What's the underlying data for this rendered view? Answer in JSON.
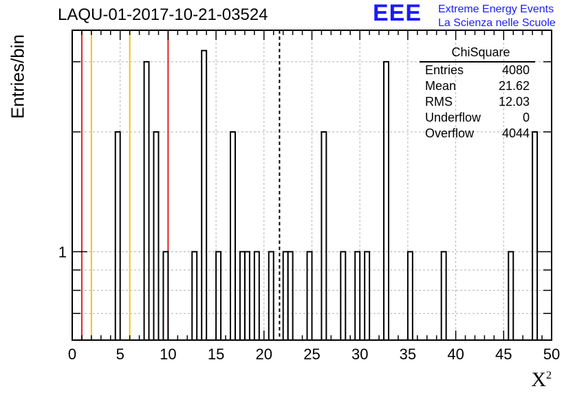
{
  "title": "LAQU-01-2017-10-21-03524",
  "logo": {
    "acronym": "EEE",
    "line1": "Extreme Energy Events",
    "line2": "La Scienza nelle Scuole",
    "color": "#1a1aff"
  },
  "stats": {
    "name": "ChiSquare",
    "rows": [
      {
        "label": "Entries",
        "value": "4080"
      },
      {
        "label": "Mean",
        "value": "21.62"
      },
      {
        "label": "RMS",
        "value": "12.03"
      },
      {
        "label": "Underflow",
        "value": "0"
      },
      {
        "label": "Overflow",
        "value": "4044"
      }
    ]
  },
  "chart_data": {
    "type": "bar",
    "title": "LAQU-01-2017-10-21-03524",
    "xlabel": "X",
    "xlabel_superscript": "2",
    "ylabel": "Entries/bin",
    "xlim": [
      0,
      50
    ],
    "ylim": [
      0.6,
      3.6
    ],
    "yscale": "log",
    "grid": true,
    "bin_width": 0.5,
    "x_ticks": [
      "0",
      "5",
      "10",
      "15",
      "20",
      "25",
      "30",
      "35",
      "40",
      "45",
      "50"
    ],
    "y_ticks": [
      "1"
    ],
    "bins": [
      {
        "x": 4.5,
        "value": 2
      },
      {
        "x": 7.5,
        "value": 3
      },
      {
        "x": 8.5,
        "value": 2
      },
      {
        "x": 9.5,
        "value": 1
      },
      {
        "x": 12.5,
        "value": 1
      },
      {
        "x": 13.5,
        "value": 3.2
      },
      {
        "x": 15.0,
        "value": 1
      },
      {
        "x": 16.5,
        "value": 2
      },
      {
        "x": 17.5,
        "value": 1
      },
      {
        "x": 18.0,
        "value": 1
      },
      {
        "x": 19.0,
        "value": 1
      },
      {
        "x": 20.5,
        "value": 1
      },
      {
        "x": 22.0,
        "value": 1
      },
      {
        "x": 22.5,
        "value": 1
      },
      {
        "x": 24.5,
        "value": 1
      },
      {
        "x": 26.0,
        "value": 2
      },
      {
        "x": 28.0,
        "value": 1
      },
      {
        "x": 29.5,
        "value": 1
      },
      {
        "x": 30.5,
        "value": 1
      },
      {
        "x": 32.5,
        "value": 3
      },
      {
        "x": 35.0,
        "value": 1
      },
      {
        "x": 38.5,
        "value": 1
      },
      {
        "x": 45.5,
        "value": 1
      },
      {
        "x": 48.0,
        "value": 2
      }
    ],
    "vertical_lines": [
      {
        "x": 1,
        "color": "#e0201e",
        "style": "solid"
      },
      {
        "x": 2,
        "color": "#f2c314",
        "style": "solid"
      },
      {
        "x": 6,
        "color": "#f2c314",
        "style": "solid"
      },
      {
        "x": 10,
        "color": "#e0201e",
        "style": "solid"
      },
      {
        "x": 21.62,
        "color": "#000000",
        "style": "dashed"
      }
    ]
  }
}
